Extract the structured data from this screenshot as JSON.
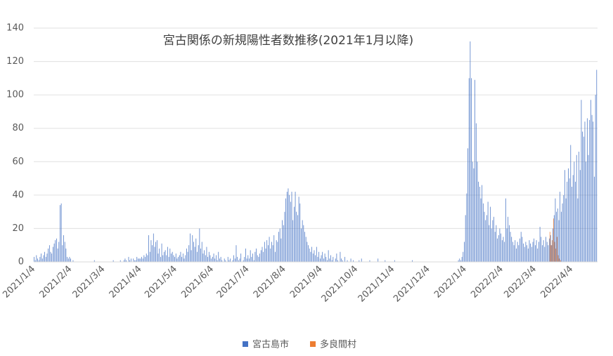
{
  "chart_data": {
    "type": "bar",
    "title": "宮古関係の新規陽性者数推移(2021年1月以降)",
    "ylim": [
      0,
      140
    ],
    "yticks": [
      0,
      20,
      40,
      60,
      80,
      100,
      120,
      140
    ],
    "grid": true,
    "legend": "bottom",
    "categories": [
      "2021/1/4",
      null,
      null,
      null,
      null,
      null,
      null,
      null,
      null,
      null,
      null,
      null,
      null,
      null,
      null,
      null,
      null,
      null,
      null,
      null,
      null,
      null,
      null,
      null,
      null,
      null,
      null,
      null,
      null,
      null,
      null,
      "2021/2/4",
      null,
      null,
      null,
      null,
      null,
      null,
      null,
      null,
      null,
      null,
      null,
      null,
      null,
      null,
      null,
      null,
      null,
      null,
      null,
      null,
      null,
      null,
      null,
      null,
      null,
      null,
      null,
      "2021/3/4",
      null,
      null,
      null,
      null,
      null,
      null,
      null,
      null,
      null,
      null,
      null,
      null,
      null,
      null,
      null,
      null,
      null,
      null,
      null,
      null,
      null,
      null,
      null,
      null,
      null,
      null,
      null,
      null,
      null,
      null,
      "2021/4/4",
      null,
      null,
      null,
      null,
      null,
      null,
      null,
      null,
      null,
      null,
      null,
      null,
      null,
      null,
      null,
      null,
      null,
      null,
      null,
      null,
      null,
      null,
      null,
      null,
      null,
      null,
      null,
      null,
      null,
      "2021/5/4",
      null,
      null,
      null,
      null,
      null,
      null,
      null,
      null,
      null,
      null,
      null,
      null,
      null,
      null,
      null,
      null,
      null,
      null,
      null,
      null,
      null,
      null,
      null,
      null,
      null,
      null,
      null,
      null,
      null,
      null,
      "2021/6/4",
      null,
      null,
      null,
      null,
      null,
      null,
      null,
      null,
      null,
      null,
      null,
      null,
      null,
      null,
      null,
      null,
      null,
      null,
      null,
      null,
      null,
      null,
      null,
      null,
      null,
      null,
      null,
      null,
      null,
      "2021/7/4",
      null,
      null,
      null,
      null,
      null,
      null,
      null,
      null,
      null,
      null,
      null,
      null,
      null,
      null,
      null,
      null,
      null,
      null,
      null,
      null,
      null,
      null,
      null,
      null,
      null,
      null,
      null,
      null,
      null,
      null,
      "2021/8/4",
      null,
      null,
      null,
      null,
      null,
      null,
      null,
      null,
      null,
      null,
      null,
      null,
      null,
      null,
      null,
      null,
      null,
      null,
      null,
      null,
      null,
      null,
      null,
      null,
      null,
      null,
      null,
      null,
      null,
      null,
      "2021/9/4",
      null,
      null,
      null,
      null,
      null,
      null,
      null,
      null,
      null,
      null,
      null,
      null,
      null,
      null,
      null,
      null,
      null,
      null,
      null,
      null,
      null,
      null,
      null,
      null,
      null,
      null,
      null,
      null,
      null,
      "2021/10/4",
      null,
      null,
      null,
      null,
      null,
      null,
      null,
      null,
      null,
      null,
      null,
      null,
      null,
      null,
      null,
      null,
      null,
      null,
      null,
      null,
      null,
      null,
      null,
      null,
      null,
      null,
      null,
      null,
      null,
      null,
      "2021/11/4",
      null,
      null,
      null,
      null,
      null,
      null,
      null,
      null,
      null,
      null,
      null,
      null,
      null,
      null,
      null,
      null,
      null,
      null,
      null,
      null,
      null,
      null,
      null,
      null,
      null,
      null,
      null,
      null,
      null,
      "2021/12/4",
      null,
      null,
      null,
      null,
      null,
      null,
      null,
      null,
      null,
      null,
      null,
      null,
      null,
      null,
      null,
      null,
      null,
      null,
      null,
      null,
      null,
      null,
      null,
      null,
      null,
      null,
      null,
      null,
      null,
      null,
      "2022/1/4",
      null,
      null,
      null,
      null,
      null,
      null,
      null,
      null,
      null,
      null,
      null,
      null,
      null,
      null,
      null,
      null,
      null,
      null,
      null,
      null,
      null,
      null,
      null,
      null,
      null,
      null,
      null,
      null,
      null,
      null,
      "2022/2/4",
      null,
      null,
      null,
      null,
      null,
      null,
      null,
      null,
      null,
      null,
      null,
      null,
      null,
      null,
      null,
      null,
      null,
      null,
      null,
      null,
      null,
      null,
      null,
      null,
      null,
      null,
      null,
      "2022/3/4",
      null,
      null,
      null,
      null,
      null,
      null,
      null,
      null,
      null,
      null,
      null,
      null,
      null,
      null,
      null,
      null,
      null,
      null,
      null,
      null,
      null,
      null,
      null,
      null,
      null,
      null,
      null,
      null,
      null,
      null,
      "2022/4/4",
      null,
      null,
      null,
      null,
      null,
      null,
      null,
      null,
      null,
      null,
      null,
      null,
      null,
      null,
      null,
      null,
      null,
      null,
      null,
      null,
      null
    ],
    "series": [
      {
        "name": "宮古島市",
        "color": "#4472c4",
        "values": [
          3,
          1,
          4,
          2,
          1,
          3,
          5,
          2,
          4,
          6,
          3,
          5,
          8,
          10,
          6,
          5,
          9,
          11,
          13,
          14,
          8,
          12,
          34,
          35,
          10,
          16,
          12,
          8,
          3,
          2,
          3,
          2,
          0,
          1,
          0,
          0,
          0,
          0,
          0,
          0,
          0,
          0,
          0,
          0,
          0,
          0,
          0,
          0,
          0,
          0,
          0,
          1,
          0,
          0,
          0,
          0,
          0,
          0,
          0,
          0,
          0,
          0,
          0,
          0,
          0,
          0,
          0,
          1,
          0,
          0,
          0,
          0,
          0,
          1,
          0,
          0,
          1,
          2,
          1,
          0,
          3,
          1,
          2,
          0,
          2,
          1,
          1,
          3,
          2,
          2,
          2,
          3,
          2,
          4,
          3,
          5,
          4,
          16,
          6,
          13,
          10,
          17,
          9,
          12,
          13,
          5,
          8,
          3,
          11,
          4,
          6,
          7,
          4,
          9,
          3,
          8,
          5,
          6,
          4,
          3,
          5,
          2,
          3,
          4,
          6,
          3,
          5,
          2,
          4,
          8,
          6,
          10,
          17,
          7,
          16,
          12,
          9,
          14,
          6,
          10,
          20,
          8,
          12,
          5,
          7,
          4,
          9,
          3,
          6,
          4,
          2,
          3,
          5,
          2,
          4,
          1,
          6,
          2,
          3,
          1,
          0,
          2,
          1,
          0,
          3,
          1,
          2,
          0,
          1,
          4,
          2,
          10,
          3,
          1,
          2,
          5,
          0,
          1,
          3,
          8,
          2,
          4,
          2,
          7,
          3,
          5,
          1,
          6,
          8,
          4,
          3,
          5,
          7,
          9,
          6,
          12,
          8,
          13,
          10,
          15,
          8,
          12,
          10,
          16,
          6,
          13,
          12,
          18,
          20,
          14,
          25,
          22,
          30,
          38,
          42,
          44,
          40,
          36,
          42,
          25,
          33,
          42,
          30,
          28,
          39,
          35,
          20,
          25,
          22,
          18,
          15,
          12,
          10,
          8,
          6,
          9,
          5,
          7,
          4,
          9,
          3,
          6,
          2,
          4,
          6,
          2,
          5,
          3,
          1,
          7,
          2,
          4,
          1,
          3,
          0,
          2,
          5,
          1,
          0,
          6,
          2,
          1,
          0,
          3,
          0,
          1,
          0,
          0,
          2,
          0,
          1,
          0,
          0,
          0,
          0,
          1,
          0,
          2,
          0,
          0,
          0,
          0,
          0,
          0,
          1,
          0,
          0,
          0,
          0,
          0,
          0,
          2,
          0,
          0,
          0,
          0,
          0,
          1,
          0,
          0,
          0,
          0,
          0,
          0,
          0,
          1,
          0,
          0,
          0,
          0,
          0,
          0,
          0,
          0,
          0,
          0,
          0,
          0,
          0,
          0,
          1,
          0,
          0,
          0,
          0,
          0,
          0,
          0,
          0,
          0,
          0,
          0,
          0,
          0,
          0,
          0,
          0,
          0,
          0,
          0,
          0,
          0,
          0,
          0,
          0,
          0,
          0,
          0,
          0,
          0,
          0,
          0,
          0,
          0,
          0,
          0,
          0,
          0,
          0,
          1,
          2,
          1,
          3,
          6,
          12,
          28,
          41,
          68,
          110,
          132,
          110,
          60,
          56,
          109,
          83,
          60,
          48,
          45,
          38,
          46,
          35,
          30,
          25,
          28,
          36,
          22,
          33,
          20,
          25,
          27,
          18,
          22,
          14,
          16,
          20,
          17,
          13,
          15,
          12,
          38,
          20,
          27,
          22,
          18,
          15,
          12,
          10,
          13,
          8,
          12,
          10,
          14,
          18,
          15,
          11,
          9,
          12,
          10,
          8,
          13,
          11,
          9,
          12,
          14,
          10,
          13,
          8,
          12,
          21,
          15,
          10,
          13,
          9,
          15,
          12,
          10,
          14,
          16,
          10,
          20,
          28,
          38,
          30,
          32,
          25,
          42,
          30,
          35,
          40,
          55,
          38,
          48,
          56,
          50,
          70,
          45,
          52,
          60,
          48,
          64,
          38,
          66,
          55,
          97,
          78,
          75,
          84,
          60,
          86,
          64,
          85,
          97,
          88,
          84,
          51,
          100,
          115
        ]
      },
      {
        "name": "多良間村",
        "color": "#ed7d31",
        "values": [
          0,
          0,
          0,
          0,
          0,
          0,
          0,
          0,
          0,
          0,
          0,
          0,
          0,
          0,
          0,
          0,
          0,
          0,
          0,
          0,
          0,
          0,
          0,
          0,
          0,
          0,
          0,
          0,
          0,
          0,
          0,
          0,
          0,
          0,
          0,
          0,
          0,
          0,
          0,
          0,
          0,
          0,
          0,
          0,
          0,
          0,
          0,
          0,
          0,
          0,
          0,
          0,
          0,
          0,
          0,
          0,
          0,
          0,
          0,
          0,
          0,
          0,
          0,
          0,
          0,
          0,
          0,
          0,
          0,
          0,
          0,
          0,
          0,
          0,
          0,
          0,
          0,
          0,
          0,
          0,
          0,
          0,
          0,
          0,
          0,
          0,
          0,
          0,
          0,
          0,
          0,
          0,
          0,
          0,
          0,
          0,
          0,
          0,
          0,
          0,
          0,
          0,
          0,
          0,
          0,
          0,
          0,
          0,
          0,
          0,
          0,
          0,
          0,
          0,
          0,
          0,
          0,
          0,
          0,
          0,
          0,
          0,
          0,
          0,
          0,
          0,
          0,
          0,
          0,
          0,
          0,
          0,
          0,
          0,
          0,
          0,
          0,
          0,
          0,
          0,
          0,
          0,
          0,
          0,
          0,
          0,
          0,
          0,
          0,
          0,
          0,
          0,
          0,
          0,
          0,
          0,
          0,
          0,
          0,
          0,
          0,
          0,
          0,
          0,
          0,
          0,
          0,
          0,
          0,
          0,
          0,
          0,
          0,
          0,
          0,
          0,
          0,
          0,
          0,
          0,
          0,
          0,
          0,
          0,
          0,
          0,
          0,
          0,
          0,
          0,
          0,
          0,
          0,
          0,
          0,
          0,
          0,
          0,
          0,
          0,
          0,
          0,
          0,
          0,
          0,
          0,
          0,
          0,
          0,
          0,
          0,
          0,
          0,
          0,
          0,
          0,
          0,
          0,
          0,
          0,
          0,
          0,
          0,
          0,
          0,
          0,
          0,
          0,
          0,
          0,
          0,
          0,
          0,
          0,
          0,
          0,
          0,
          0,
          0,
          0,
          0,
          0,
          0,
          0,
          0,
          0,
          0,
          0,
          0,
          0,
          0,
          0,
          0,
          0,
          0,
          0,
          0,
          0,
          0,
          0,
          0,
          0,
          0,
          0,
          0,
          0,
          0,
          0,
          0,
          0,
          0,
          0,
          0,
          0,
          0,
          0,
          0,
          0,
          0,
          0,
          0,
          0,
          0,
          0,
          0,
          0,
          0,
          0,
          0,
          0,
          0,
          0,
          0,
          0,
          0,
          0,
          0,
          0,
          0,
          0,
          0,
          0,
          0,
          0,
          0,
          0,
          0,
          0,
          0,
          0,
          0,
          0,
          0,
          0,
          0,
          0,
          0,
          0,
          0,
          0,
          0,
          0,
          0,
          0,
          0,
          0,
          0,
          0,
          0,
          0,
          0,
          0,
          0,
          0,
          0,
          0,
          0,
          0,
          0,
          0,
          0,
          0,
          0,
          0,
          0,
          0,
          0,
          0,
          0,
          0,
          0,
          0,
          0,
          0,
          0,
          0,
          0,
          0,
          0,
          0,
          0,
          0,
          0,
          0,
          0,
          0,
          0,
          0,
          0,
          0,
          0,
          0,
          0,
          0,
          0,
          0,
          0,
          0,
          0,
          0,
          0,
          0,
          0,
          0,
          0,
          0,
          0,
          0,
          0,
          0,
          0,
          0,
          0,
          0,
          0,
          0,
          0,
          0,
          0,
          0,
          0,
          0,
          0,
          0,
          0,
          0,
          0,
          0,
          0,
          0,
          0,
          0,
          0,
          0,
          0,
          0,
          0,
          0,
          0,
          0,
          0,
          0,
          0,
          0,
          0,
          0,
          0,
          0,
          0,
          0,
          0,
          0,
          0,
          0,
          0,
          0,
          18,
          10,
          13,
          26,
          12,
          8,
          15,
          4,
          2,
          1,
          0,
          0,
          0,
          0,
          0,
          0,
          0,
          0,
          0,
          0,
          0,
          0,
          0,
          0,
          0,
          0,
          0,
          0,
          0,
          0,
          0,
          0,
          0,
          0,
          0,
          0,
          0,
          0,
          0,
          0,
          0
        ]
      }
    ]
  }
}
